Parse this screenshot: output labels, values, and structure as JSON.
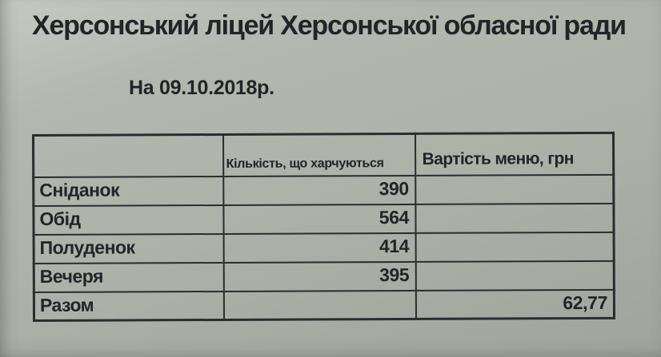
{
  "document": {
    "title": "Херсонський ліцей Херсонської обласної ради",
    "date_line": "На 09.10.2018р."
  },
  "table": {
    "headers": [
      "",
      "Кількість, що харчуються",
      "Вартість меню, грн"
    ],
    "rows": [
      {
        "label": "Сніданок",
        "quantity": "390",
        "cost": ""
      },
      {
        "label": "Обід",
        "quantity": "564",
        "cost": ""
      },
      {
        "label": "Полуденок",
        "quantity": "414",
        "cost": ""
      },
      {
        "label": "Вечеря",
        "quantity": "395",
        "cost": ""
      },
      {
        "label": "Разом",
        "quantity": "",
        "cost": "62,77"
      }
    ]
  },
  "colors": {
    "paper": "#adb1a8",
    "paper-light": "#c6c9c1",
    "paper-dark": "#a0a49c",
    "ink": "#232427",
    "border": "#2b2c2e"
  }
}
